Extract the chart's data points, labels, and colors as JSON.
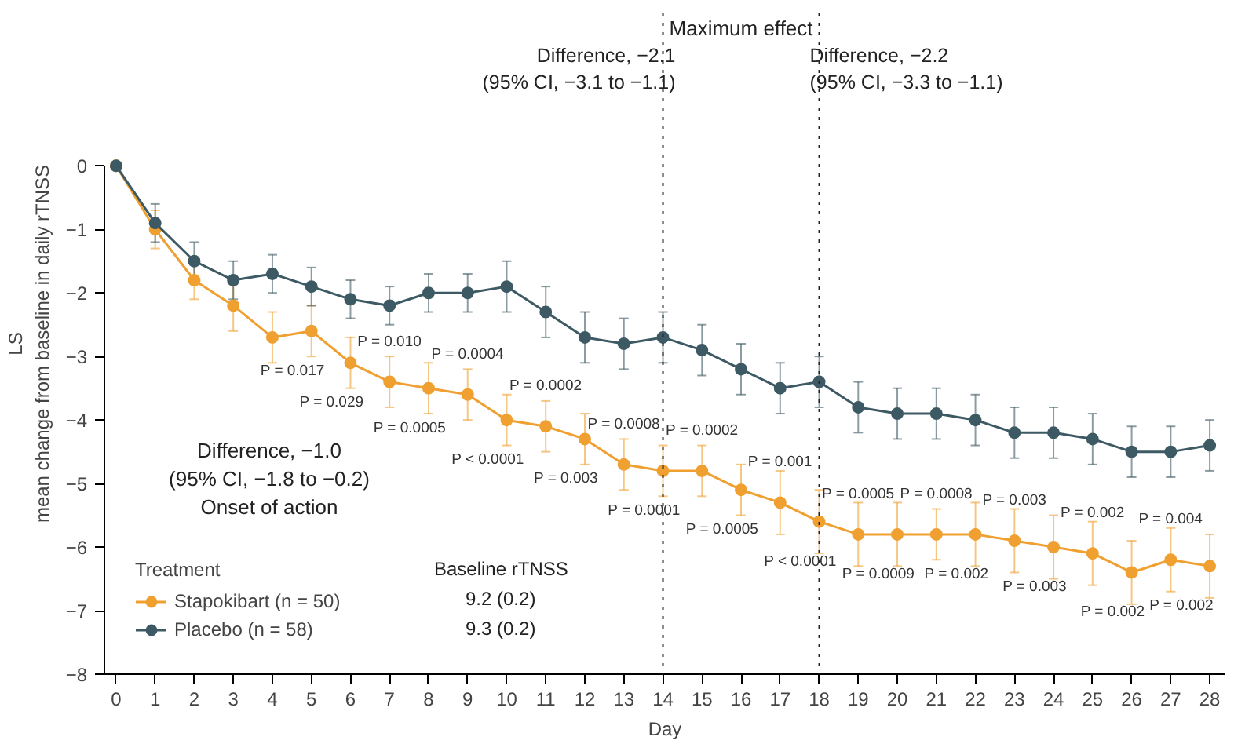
{
  "chart_data": {
    "type": "line",
    "title": "Maximum effect",
    "xlabel": "Day",
    "ylabel": "LS\nmean change from baseline in daily rTNSS",
    "legend_title": "Treatment",
    "legend": "bottom left",
    "marker": "circle",
    "grid": false,
    "x": [
      0,
      1,
      2,
      3,
      4,
      5,
      6,
      7,
      8,
      9,
      10,
      11,
      12,
      13,
      14,
      15,
      16,
      17,
      18,
      19,
      20,
      21,
      22,
      23,
      24,
      25,
      26,
      27,
      28
    ],
    "xlim": [
      -0.3,
      28.4
    ],
    "xticks": [
      0,
      1,
      2,
      3,
      4,
      5,
      6,
      7,
      8,
      9,
      10,
      11,
      12,
      13,
      14,
      15,
      16,
      17,
      18,
      19,
      20,
      21,
      22,
      23,
      24,
      25,
      26,
      27,
      28
    ],
    "ylim": [
      -8,
      2.4
    ],
    "yticks": [
      {
        "value": 0,
        "label": "0"
      },
      {
        "value": -1,
        "label": "−1"
      },
      {
        "value": -2,
        "label": "−2"
      },
      {
        "value": -3,
        "label": "−3"
      },
      {
        "value": -4,
        "label": "−4"
      },
      {
        "value": -5,
        "label": "−5"
      },
      {
        "value": -6,
        "label": "−6"
      },
      {
        "value": -7,
        "label": "−7"
      },
      {
        "value": -8,
        "label": "−8"
      }
    ],
    "series": [
      {
        "name": "Stapokibart (n = 50)",
        "color": "#f0a030",
        "values": [
          0,
          -1.0,
          -1.8,
          -2.2,
          -2.7,
          -2.6,
          -3.1,
          -3.4,
          -3.5,
          -3.6,
          -4.0,
          -4.1,
          -4.3,
          -4.7,
          -4.8,
          -4.8,
          -5.1,
          -5.3,
          -5.6,
          -5.8,
          -5.8,
          -5.8,
          -5.8,
          -5.9,
          -6.0,
          -6.1,
          -6.4,
          -6.2,
          -6.3
        ],
        "errors": [
          null,
          0.3,
          0.3,
          0.4,
          0.4,
          0.4,
          0.4,
          0.4,
          0.4,
          0.4,
          0.4,
          0.4,
          0.4,
          0.4,
          0.4,
          0.4,
          0.4,
          0.5,
          0.5,
          0.5,
          0.5,
          0.4,
          0.5,
          0.5,
          0.5,
          0.5,
          0.5,
          0.5,
          0.5
        ]
      },
      {
        "name": "Placebo (n = 58)",
        "color": "#3d5a64",
        "values": [
          0,
          -0.9,
          -1.5,
          -1.8,
          -1.7,
          -1.9,
          -2.1,
          -2.2,
          -2.0,
          -2.0,
          -1.9,
          -2.3,
          -2.7,
          -2.8,
          -2.7,
          -2.9,
          -3.2,
          -3.5,
          -3.4,
          -3.8,
          -3.9,
          -3.9,
          -4.0,
          -4.2,
          -4.2,
          -4.3,
          -4.5,
          -4.5,
          -4.4
        ],
        "errors": [
          null,
          0.3,
          0.3,
          0.3,
          0.3,
          0.3,
          0.3,
          0.3,
          0.3,
          0.3,
          0.4,
          0.4,
          0.4,
          0.4,
          0.4,
          0.4,
          0.4,
          0.4,
          0.4,
          0.4,
          0.4,
          0.4,
          0.4,
          0.4,
          0.4,
          0.4,
          0.4,
          0.4,
          0.4
        ]
      }
    ],
    "ref_lines": [
      {
        "axis": "x",
        "value": 14,
        "label": "Difference, −2.1\n(95% CI, −3.1 to −1.1)",
        "line_style": "dotted",
        "color": "#222222"
      },
      {
        "axis": "x",
        "value": 18,
        "label": "Difference, −2.2\n(95% CI, −3.3 to −1.1)",
        "line_style": "dotted",
        "color": "#222222"
      }
    ],
    "annotations": [
      "Difference, −1.0\n(95% CI, −1.8 to −0.2)\nOnset of action",
      "Baseline rTNSS",
      "9.2 (0.2)",
      "9.3 (0.2)",
      {
        "text": "P = 0.017",
        "x": 5,
        "y": -2.6
      },
      {
        "text": "P = 0.029",
        "x": 6,
        "y": -3.1
      },
      {
        "text": "P = 0.010",
        "x": 7,
        "y": -3.4
      },
      {
        "text": "P = 0.0005",
        "x": 8,
        "y": -3.5
      },
      {
        "text": "P = 0.0004",
        "x": 9,
        "y": -3.6
      },
      {
        "text": "P < 0.0001",
        "x": 10,
        "y": -4.0
      },
      {
        "text": "P = 0.0002",
        "x": 11,
        "y": -4.1
      },
      {
        "text": "P = 0.003",
        "x": 12,
        "y": -4.3
      },
      {
        "text": "P = 0.0008",
        "x": 13,
        "y": -4.7
      },
      {
        "text": "P = 0.0001",
        "x": 14,
        "y": -4.8
      },
      {
        "text": "P = 0.0002",
        "x": 15,
        "y": -4.8
      },
      {
        "text": "P = 0.0005",
        "x": 16,
        "y": -5.1
      },
      {
        "text": "P = 0.001",
        "x": 17,
        "y": -5.3
      },
      {
        "text": "P < 0.0001",
        "x": 18,
        "y": -5.6
      },
      {
        "text": "P = 0.0005",
        "x": 19,
        "y": -5.8
      },
      {
        "text": "P = 0.0009",
        "x": 20,
        "y": -5.8
      },
      {
        "text": "P = 0.0008",
        "x": 21,
        "y": -5.8
      },
      {
        "text": "P = 0.002",
        "x": 22,
        "y": -5.8
      },
      {
        "text": "P = 0.003",
        "x": 23,
        "y": -5.9
      },
      {
        "text": "P = 0.003",
        "x": 24,
        "y": -6.0
      },
      {
        "text": "P = 0.002",
        "x": 25,
        "y": -6.1
      },
      {
        "text": "P = 0.002",
        "x": 26,
        "y": -6.4
      },
      {
        "text": "P = 0.004",
        "x": 27,
        "y": -6.2
      },
      {
        "text": "P = 0.002",
        "x": 28,
        "y": -6.3
      }
    ]
  }
}
